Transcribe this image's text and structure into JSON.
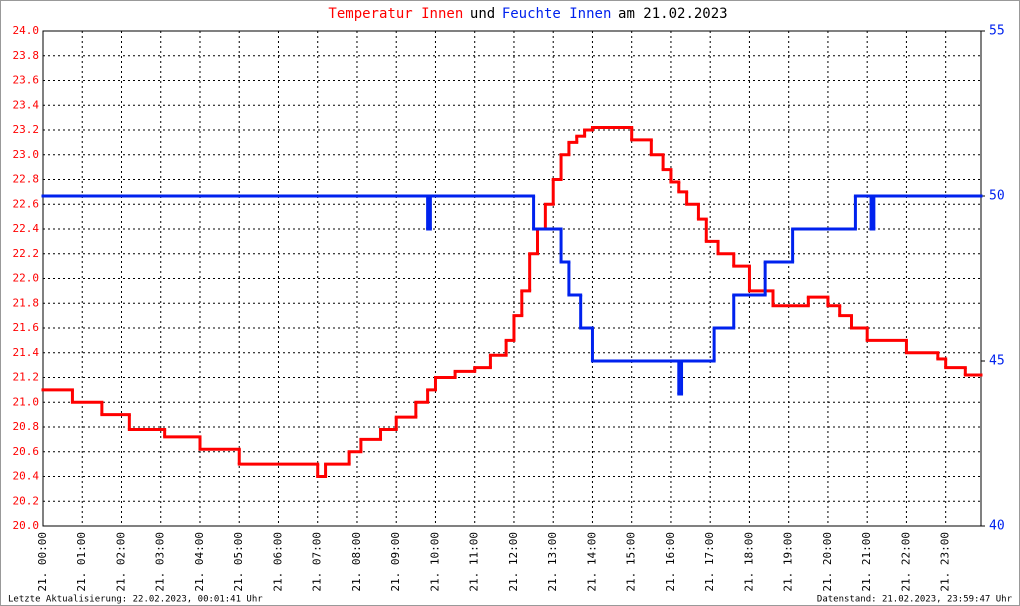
{
  "chart_data": {
    "type": "step-line",
    "title_parts": [
      "und",
      "am 21.02.2023"
    ],
    "footer_left": "Letzte Aktualisierung: 22.02.2023, 00:01:41 Uhr",
    "footer_right": "Datenstand: 21.02.2023, 23:59:47 Uhr",
    "xlim": [
      0,
      23.9
    ],
    "xticks": [
      {
        "value": 0,
        "label": "21. 00:00"
      },
      {
        "value": 1,
        "label": "21. 01:00"
      },
      {
        "value": 2,
        "label": "21. 02:00"
      },
      {
        "value": 3,
        "label": "21. 03:00"
      },
      {
        "value": 4,
        "label": "21. 04:00"
      },
      {
        "value": 5,
        "label": "21. 05:00"
      },
      {
        "value": 6,
        "label": "21. 06:00"
      },
      {
        "value": 7,
        "label": "21. 07:00"
      },
      {
        "value": 8,
        "label": "21. 08:00"
      },
      {
        "value": 9,
        "label": "21. 09:00"
      },
      {
        "value": 10,
        "label": "21. 10:00"
      },
      {
        "value": 11,
        "label": "21. 11:00"
      },
      {
        "value": 12,
        "label": "21. 12:00"
      },
      {
        "value": 13,
        "label": "21. 13:00"
      },
      {
        "value": 14,
        "label": "21. 14:00"
      },
      {
        "value": 15,
        "label": "21. 15:00"
      },
      {
        "value": 16,
        "label": "21. 16:00"
      },
      {
        "value": 17,
        "label": "21. 17:00"
      },
      {
        "value": 18,
        "label": "21. 18:00"
      },
      {
        "value": 19,
        "label": "21. 19:00"
      },
      {
        "value": 20,
        "label": "21. 20:00"
      },
      {
        "value": 21,
        "label": "21. 21:00"
      },
      {
        "value": 22,
        "label": "21. 22:00"
      },
      {
        "value": 23,
        "label": "21. 23:00"
      }
    ],
    "ylim": [
      20,
      24
    ],
    "yticks": [
      {
        "value": 20,
        "label": "20.0"
      },
      20.2,
      20.4,
      20.6,
      20.8,
      {
        "value": 21,
        "label": "21.0"
      },
      21.2,
      21.4,
      21.6,
      21.8,
      {
        "value": 22,
        "label": "22.0"
      },
      22.2,
      22.4,
      22.6,
      22.8,
      {
        "value": 23,
        "label": "23.0"
      },
      23.2,
      23.4,
      23.6,
      23.8,
      {
        "value": 24,
        "label": "24.0"
      }
    ],
    "y2lim": [
      40,
      55
    ],
    "y2ticks": [
      40,
      45,
      50,
      55
    ],
    "grid": true,
    "series": [
      {
        "name": "Temperatur Innen",
        "color": "#ff0000",
        "x": [
          0,
          0.75,
          1.5,
          2.2,
          3.1,
          4.0,
          5.0,
          7.0,
          7.2,
          7.8,
          8.1,
          8.6,
          9.0,
          9.5,
          9.8,
          10.0,
          10.5,
          11.0,
          11.4,
          11.8,
          12.0,
          12.2,
          12.4,
          12.6,
          12.8,
          13.0,
          13.2,
          13.4,
          13.6,
          13.8,
          14.0,
          15.0,
          15.5,
          15.8,
          16.0,
          16.2,
          16.4,
          16.7,
          16.9,
          17.2,
          17.6,
          18.0,
          18.6,
          19.5,
          20.0,
          20.3,
          20.6,
          21.0,
          22.0,
          22.8,
          23.0,
          23.5
        ],
        "values": [
          21.1,
          21.0,
          20.9,
          20.78,
          20.72,
          20.62,
          20.5,
          20.4,
          20.5,
          20.6,
          20.7,
          20.78,
          20.88,
          21.0,
          21.1,
          21.2,
          21.25,
          21.28,
          21.38,
          21.5,
          21.7,
          21.9,
          22.2,
          22.4,
          22.6,
          22.8,
          23.0,
          23.1,
          23.15,
          23.2,
          23.22,
          23.12,
          23.0,
          22.88,
          22.78,
          22.7,
          22.6,
          22.48,
          22.3,
          22.2,
          22.1,
          21.9,
          21.78,
          21.85,
          21.78,
          21.7,
          21.6,
          21.5,
          21.4,
          21.35,
          21.28,
          21.22
        ]
      },
      {
        "name": "Feuchte Innen",
        "color": "#0022ee",
        "axis": "y2",
        "x": [
          0,
          9.8,
          9.87,
          12.5,
          13.2,
          13.4,
          13.7,
          14.0,
          16.2,
          16.27,
          17.1,
          17.6,
          18.4,
          19.1,
          20.7,
          21.1,
          21.17
        ],
        "values": [
          50,
          49,
          50,
          49,
          48,
          47,
          46,
          45,
          44,
          45,
          46,
          47,
          48,
          49,
          50,
          49,
          50
        ]
      }
    ]
  }
}
